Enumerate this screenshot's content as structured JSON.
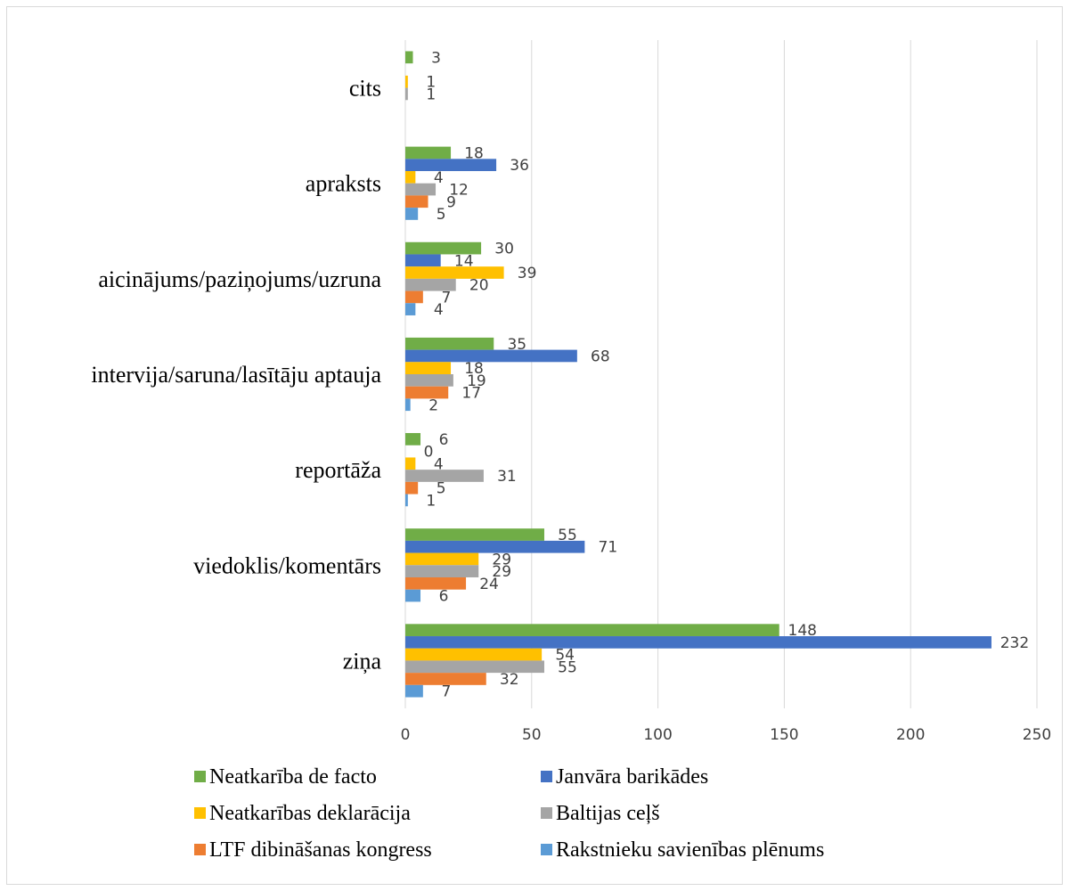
{
  "chart_data": {
    "type": "bar",
    "orientation": "horizontal",
    "categories": [
      "ziņa",
      "viedoklis/komentārs",
      "reportāža",
      "intervija/saruna/lasītāju aptauja",
      "aicinājums/paziņojums/uzruna",
      "apraksts",
      "cits"
    ],
    "series": [
      {
        "name": "Neatkarība de facto",
        "color": "#70AD47",
        "values": [
          148,
          55,
          6,
          35,
          30,
          18,
          3
        ]
      },
      {
        "name": "Janvāra barikādes",
        "color": "#4472C4",
        "values": [
          232,
          71,
          0,
          68,
          14,
          36,
          null
        ]
      },
      {
        "name": "Neatkarības deklarācija",
        "color": "#FFC000",
        "values": [
          54,
          29,
          4,
          18,
          39,
          4,
          1
        ]
      },
      {
        "name": "Baltijas ceļš",
        "color": "#A5A5A5",
        "values": [
          55,
          29,
          31,
          19,
          20,
          12,
          1
        ]
      },
      {
        "name": "LTF dibināšanas kongress",
        "color": "#ED7D31",
        "values": [
          32,
          24,
          5,
          17,
          7,
          9,
          null
        ]
      },
      {
        "name": "Rakstnieku savienības plēnums",
        "color": "#5B9BD5",
        "values": [
          7,
          6,
          1,
          2,
          4,
          5,
          null
        ]
      }
    ],
    "xlim": [
      0,
      250
    ],
    "xticks": [
      0,
      50,
      100,
      150,
      200,
      250
    ],
    "grid": true,
    "legend": "bottom"
  }
}
